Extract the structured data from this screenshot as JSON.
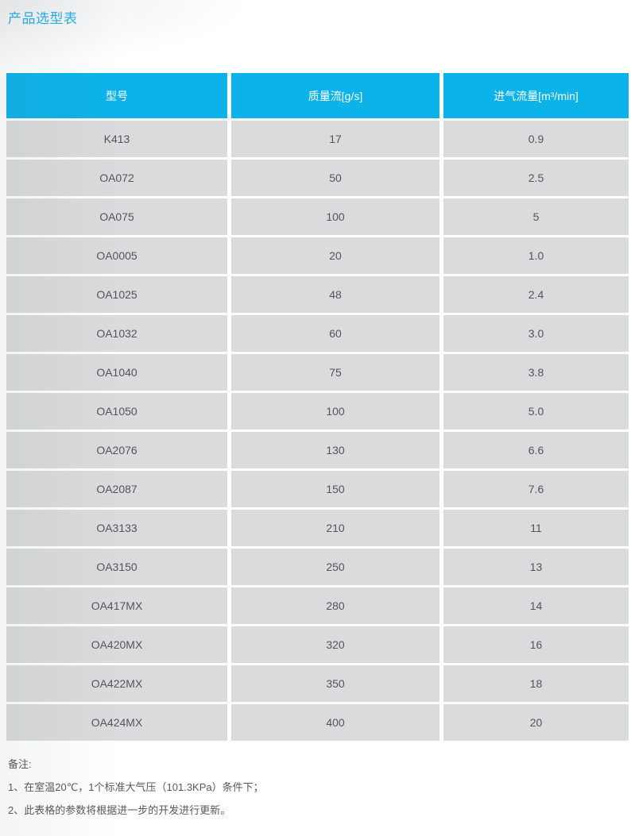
{
  "page": {
    "title": "产品选型表"
  },
  "table": {
    "columns": [
      "型号",
      "质量流[g/s]",
      "进气流量[m³/min]"
    ],
    "rows": [
      [
        "K413",
        "17",
        "0.9"
      ],
      [
        "OA072",
        "50",
        "2.5"
      ],
      [
        "OA075",
        "100",
        "5"
      ],
      [
        "OA0005",
        "20",
        "1.0"
      ],
      [
        "OA1025",
        "48",
        "2.4"
      ],
      [
        "OA1032",
        "60",
        "3.0"
      ],
      [
        "OA1040",
        "75",
        "3.8"
      ],
      [
        "OA1050",
        "100",
        "5.0"
      ],
      [
        "OA2076",
        "130",
        "6.6"
      ],
      [
        "OA2087",
        "150",
        "7.6"
      ],
      [
        "OA3133",
        "210",
        "11"
      ],
      [
        "OA3150",
        "250",
        "13"
      ],
      [
        "OA417MX",
        "280",
        "14"
      ],
      [
        "OA420MX",
        "320",
        "16"
      ],
      [
        "OA422MX",
        "350",
        "18"
      ],
      [
        "OA424MX",
        "400",
        "20"
      ]
    ]
  },
  "chart_data": {
    "type": "table",
    "title": "产品选型表",
    "columns": [
      "型号",
      "质量流[g/s]",
      "进气流量[m³/min]"
    ],
    "models": [
      "K413",
      "OA072",
      "OA075",
      "OA0005",
      "OA1025",
      "OA1032",
      "OA1040",
      "OA1050",
      "OA2076",
      "OA2087",
      "OA3133",
      "OA3150",
      "OA417MX",
      "OA420MX",
      "OA422MX",
      "OA424MX"
    ],
    "mass_flow": [
      17,
      50,
      100,
      20,
      48,
      60,
      75,
      100,
      130,
      150,
      210,
      250,
      280,
      320,
      350,
      400
    ],
    "intake_flow": [
      "0.9",
      "2.5",
      "5",
      "1.0",
      "2.4",
      "3.0",
      "3.8",
      "5.0",
      "6.6",
      "7.6",
      "11",
      "13",
      "14",
      "16",
      "18",
      "20"
    ]
  },
  "notes": {
    "label": "备注:",
    "items": [
      "1、在室温20℃，1个标准大气压（101.3KPa）条件下；",
      "2、此表格的参数将根据进一步的开发进行更新。"
    ]
  },
  "colors": {
    "accent": "#25aee6",
    "header_bg": "#0cb3ea",
    "row_bg": "#d9dbdc",
    "cell_text": "#535659"
  }
}
